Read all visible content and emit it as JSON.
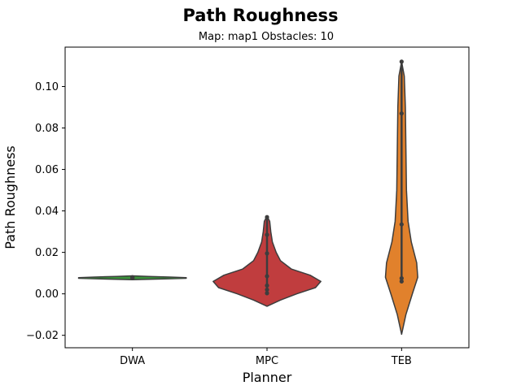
{
  "chart_data": {
    "type": "violin",
    "title": "Path Roughness",
    "subtitle": "Map: map1 Obstacles: 10",
    "xlabel": "Planner",
    "ylabel": "Path Roughness",
    "ylim": [
      -0.026,
      0.119
    ],
    "yticks": [
      -0.02,
      0.0,
      0.02,
      0.04,
      0.06,
      0.08,
      0.1
    ],
    "ytick_labels": [
      "−0.02",
      "0.00",
      "0.02",
      "0.04",
      "0.06",
      "0.08",
      "0.10"
    ],
    "grid": false,
    "categories": [
      "DWA",
      "MPC",
      "TEB"
    ],
    "colors": {
      "DWA": "#3a923a",
      "MPC": "#c03d3e",
      "TEB": "#e1812c",
      "line": "#3d3d3d"
    },
    "violins": [
      {
        "name": "DWA",
        "min": 0.0076,
        "max": 0.008,
        "points": [
          0.0076,
          0.0078,
          0.008
        ],
        "density": [
          [
            0.0068,
            0
          ],
          [
            0.0072,
            0.6
          ],
          [
            0.0075,
            1.0
          ],
          [
            0.0078,
            1.0
          ],
          [
            0.0081,
            0.7
          ],
          [
            0.0084,
            0.3
          ],
          [
            0.0087,
            0
          ]
        ]
      },
      {
        "name": "MPC",
        "min": 0.0003,
        "max": 0.037,
        "points": [
          0.0003,
          0.002,
          0.004,
          0.0085,
          0.0195,
          0.0285,
          0.037
        ],
        "density": [
          [
            -0.006,
            0
          ],
          [
            -0.003,
            0.25
          ],
          [
            0.0,
            0.55
          ],
          [
            0.003,
            0.9
          ],
          [
            0.006,
            1.0
          ],
          [
            0.009,
            0.8
          ],
          [
            0.012,
            0.45
          ],
          [
            0.016,
            0.25
          ],
          [
            0.02,
            0.17
          ],
          [
            0.025,
            0.1
          ],
          [
            0.03,
            0.07
          ],
          [
            0.035,
            0.05
          ],
          [
            0.0375,
            0
          ]
        ]
      },
      {
        "name": "TEB",
        "min": 0.006,
        "max": 0.112,
        "points": [
          0.006,
          0.0075,
          0.0335,
          0.087,
          0.112
        ],
        "density": [
          [
            -0.0195,
            0
          ],
          [
            -0.01,
            0.08
          ],
          [
            0.0,
            0.2
          ],
          [
            0.008,
            0.3
          ],
          [
            0.015,
            0.28
          ],
          [
            0.025,
            0.18
          ],
          [
            0.035,
            0.12
          ],
          [
            0.05,
            0.09
          ],
          [
            0.07,
            0.08
          ],
          [
            0.09,
            0.07
          ],
          [
            0.105,
            0.05
          ],
          [
            0.112,
            0
          ]
        ]
      }
    ]
  }
}
